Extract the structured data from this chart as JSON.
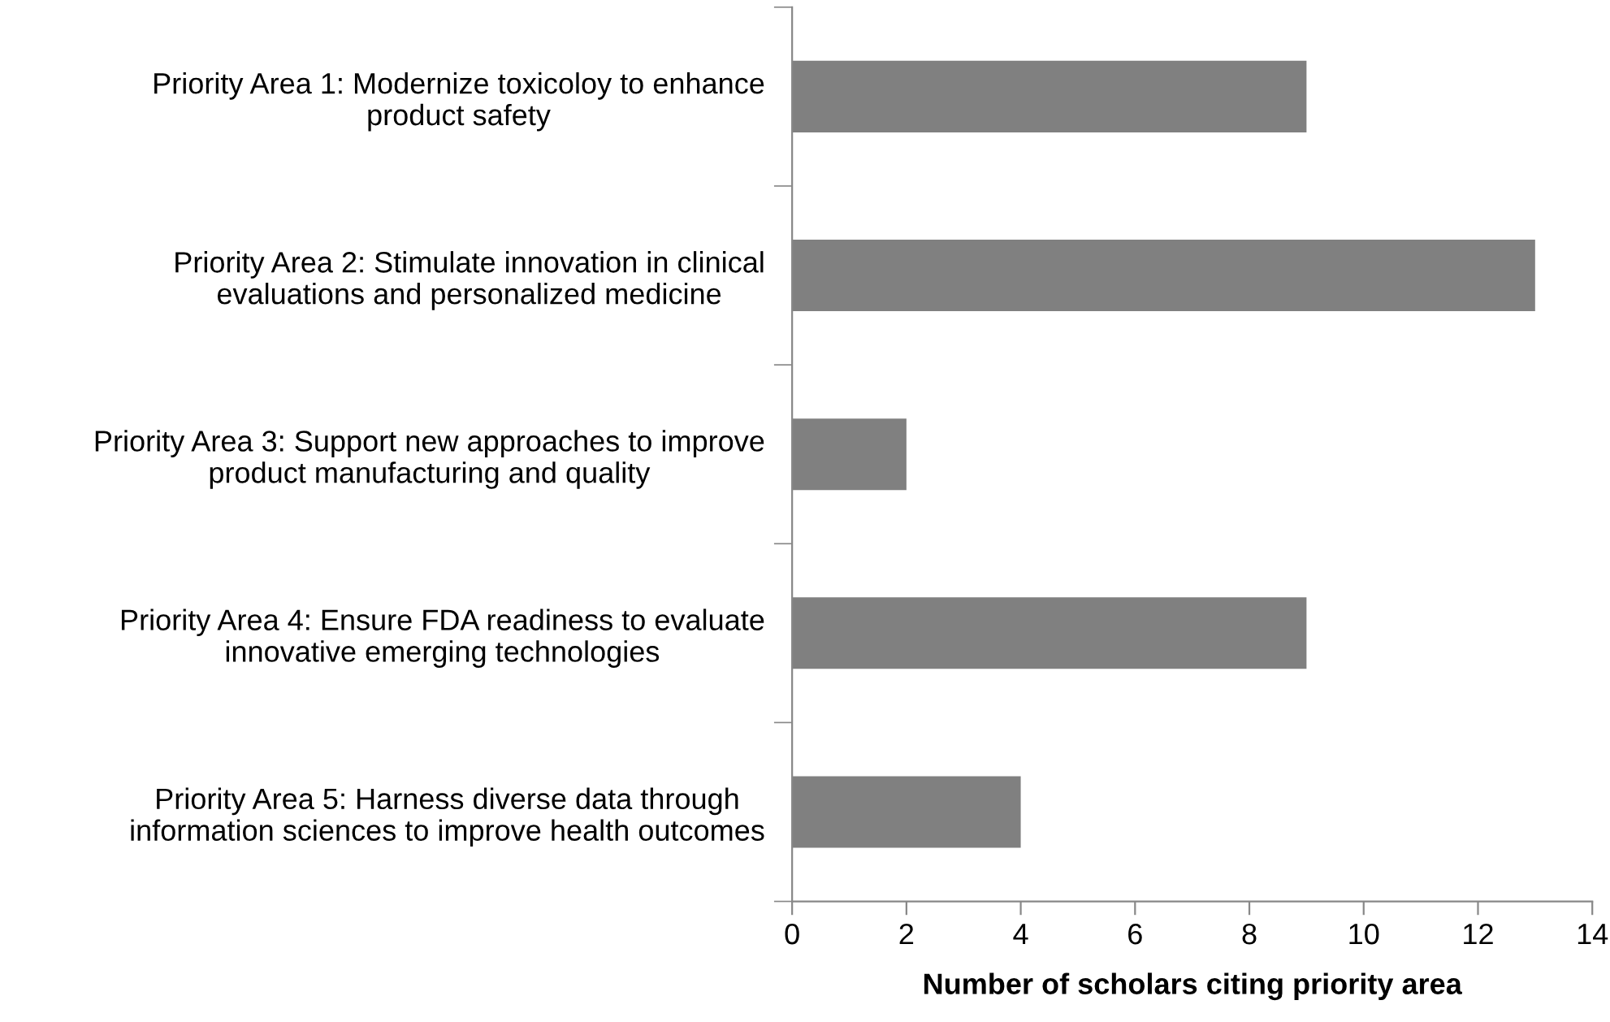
{
  "chart_data": {
    "type": "bar",
    "orientation": "horizontal",
    "xlabel": "Number of scholars citing priority area",
    "categories": [
      "Priority Area 1: Modernize toxicoloy to enhance\nproduct safety",
      "Priority Area 2: Stimulate innovation in clinical\nevaluations and personalized medicine",
      "Priority Area 3: Support new approaches to improve\nproduct manufacturing and quality",
      "Priority Area 4: Ensure FDA readiness to evaluate\ninnovative emerging technologies",
      "Priority Area 5: Harness diverse data through\ninformation sciences to improve health outcomes"
    ],
    "values": [
      9,
      13,
      2,
      9,
      4
    ],
    "color": "#808080",
    "xlim": [
      0,
      14
    ],
    "xticks": [
      0,
      2,
      4,
      6,
      8,
      10,
      12,
      14
    ],
    "grid": false,
    "legend": false
  }
}
